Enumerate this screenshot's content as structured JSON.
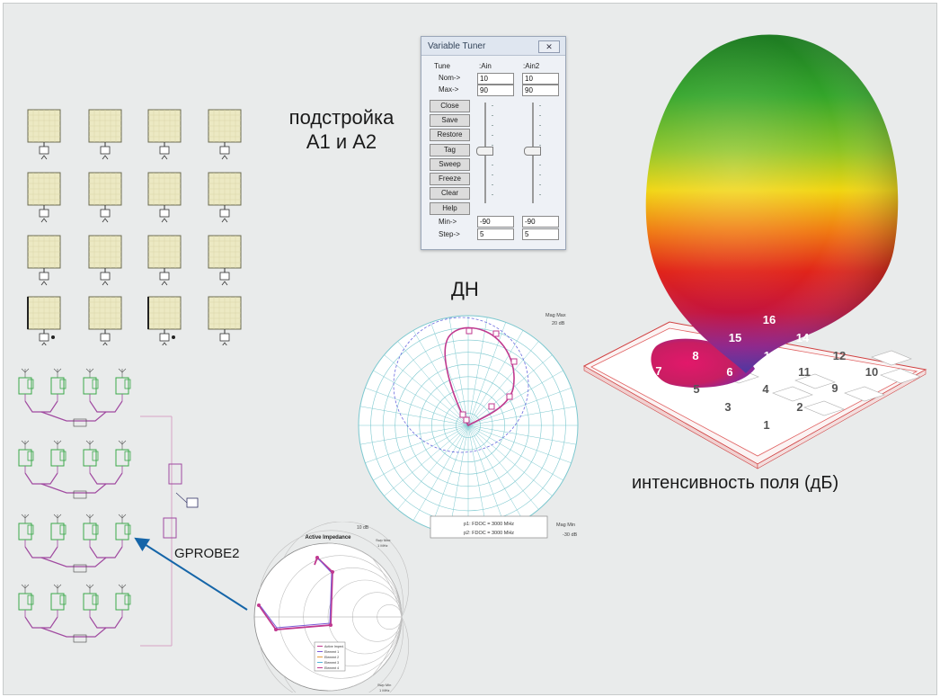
{
  "labels": {
    "tuning_line1": "подстройка",
    "tuning_line2": "А1 и А2",
    "pattern": "ДН",
    "field": "интенсивность поля (дБ)",
    "probe": "GPROBE2"
  },
  "tuner": {
    "title": "Variable Tuner",
    "close_glyph": "✕",
    "tune_label": "Tune",
    "col1": ":Ain",
    "col2": ":Ain2",
    "nom_label": "Nom->",
    "max_label": "Max->",
    "min_label": "Min->",
    "step_label": "Step->",
    "col1_nom": "10",
    "col1_max": "90",
    "col2_nom": "10",
    "col2_max": "90",
    "col1_min": "-90",
    "col1_step": "5",
    "col2_min": "-90",
    "col2_step": "5",
    "buttons": [
      "Close",
      "Save",
      "Restore",
      "Tag",
      "Sweep",
      "Freeze",
      "Clear",
      "Help"
    ]
  },
  "polar": {
    "corner_top": "Mag Max",
    "corner_top_val": "20 dB",
    "corner_bottom": "Mag Min",
    "corner_bottom_val": "-30 dB",
    "legend1": "p1: FDOC = 3000 MHz",
    "legend2": "p2: FDOC = 3000 MHz"
  },
  "smith": {
    "title": "Active Impedance",
    "corner_tl": "10 dB",
    "corner_tr1": "Swp Max",
    "corner_tr2": "1 MHz",
    "corner_br1": "Swp Min",
    "corner_br2": "1 MHz",
    "legend": [
      "Active Imped.",
      "Element 1",
      "Element 2",
      "Element 3",
      "Element 4"
    ]
  },
  "array": {
    "elements": [
      "1",
      "2",
      "3",
      "4",
      "5",
      "6",
      "7",
      "8",
      "9",
      "10",
      "11",
      "12",
      "13",
      "14",
      "15",
      "16"
    ]
  },
  "colors": {
    "background": "#e9ebeb",
    "polar_grid": "#7cc8cf",
    "trace": "#c0398f",
    "smith_grid": "#bfbfbf",
    "schematic_green": "#3aa84a",
    "schematic_purple": "#a04aa0",
    "arrow": "#1565a8"
  },
  "icons": {
    "tile": "port-tile-icon",
    "arrow": "arrow-icon"
  }
}
